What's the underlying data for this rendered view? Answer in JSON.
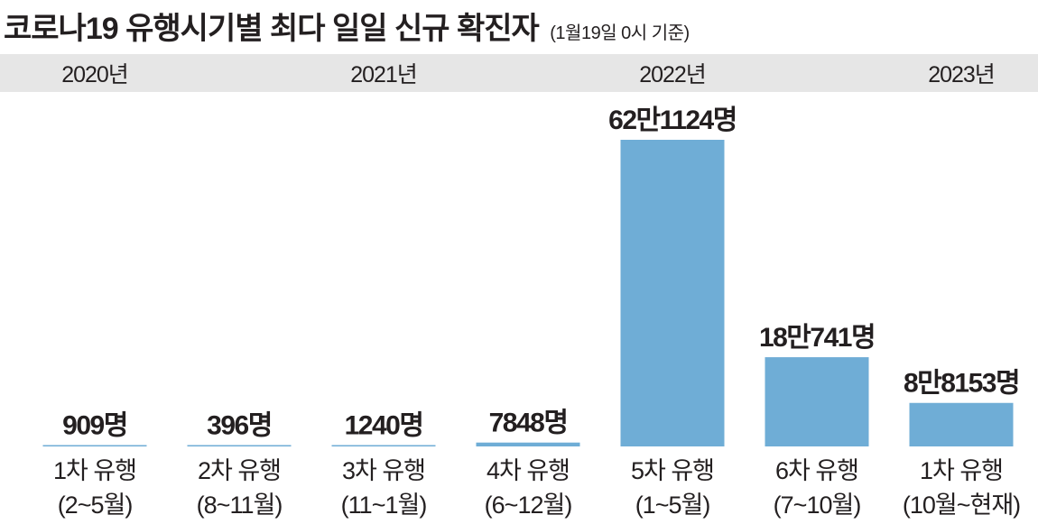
{
  "title": "코로나19 유행시기별 최다 일일 신규 확진자",
  "subtitle": "(1월19일 0시 기준)",
  "years": [
    {
      "label": "2020년",
      "index": 0
    },
    {
      "label": "2021년",
      "index": 2
    },
    {
      "label": "2022년",
      "index": 4
    },
    {
      "label": "2023년",
      "index": 6
    }
  ],
  "chart_data": {
    "type": "bar",
    "title": "코로나19 유행시기별 최다 일일 신규 확진자",
    "subtitle": "(1월19일 0시 기준)",
    "categories": [
      [
        "1차 유행",
        "(2~5월)"
      ],
      [
        "2차 유행",
        "(8~11월)"
      ],
      [
        "3차 유행",
        "(11~1월)"
      ],
      [
        "4차 유행",
        "(6~12월)"
      ],
      [
        "5차 유행",
        "(1~5월)"
      ],
      [
        "6차 유행",
        "(7~10월)"
      ],
      [
        "1차 유행",
        "(10월~현재)"
      ]
    ],
    "values": [
      909,
      396,
      1240,
      7848,
      621124,
      180741,
      88153
    ],
    "value_labels": [
      "909명",
      "396명",
      "1240명",
      "7848명",
      "62만1124명",
      "18만741명",
      "8만8153명"
    ],
    "year_groups": [
      "2020년",
      "2021년",
      "2022년",
      "2023년"
    ],
    "ylim": [
      0,
      621124
    ],
    "bar_color": "#6fadd6",
    "grid": false,
    "legend": "none"
  }
}
